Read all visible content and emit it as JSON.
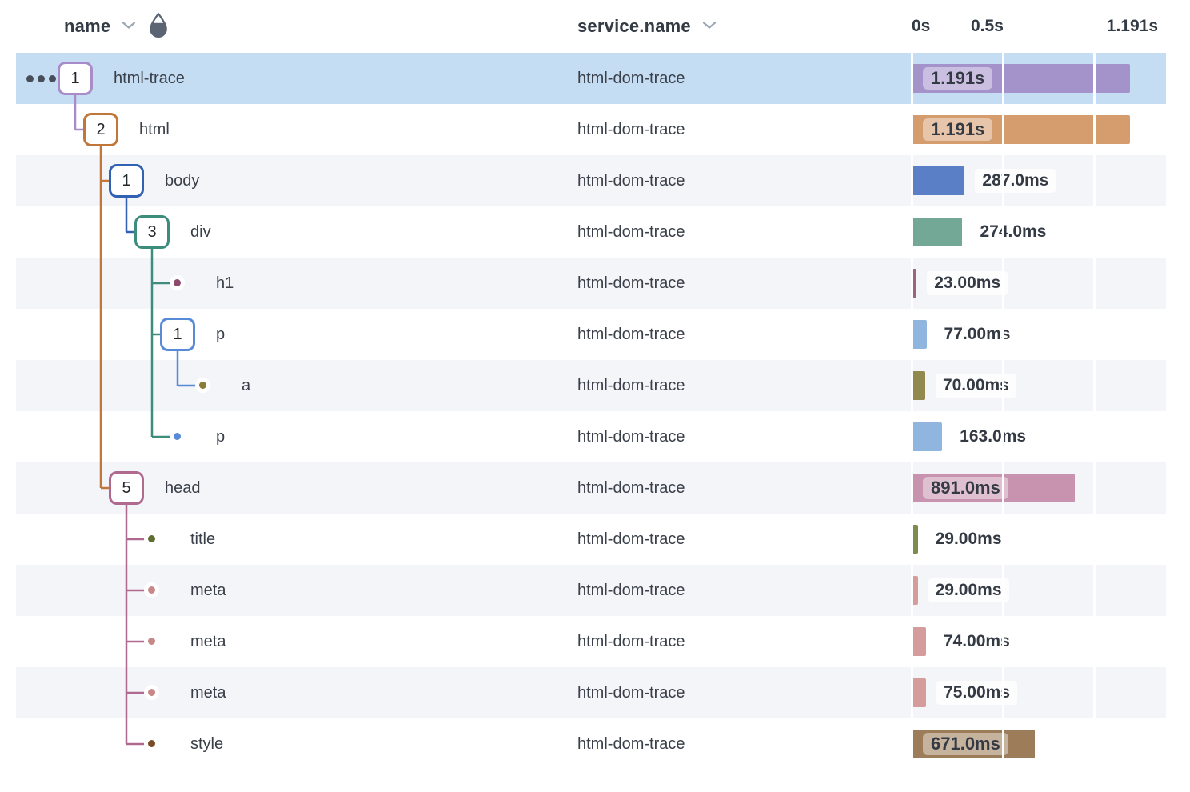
{
  "header": {
    "name_column": {
      "label": "name"
    },
    "service_column": {
      "label": "service.name"
    },
    "axis": {
      "tick_0": "0s",
      "tick_mid": "0.5s",
      "tick_end": "1.191s"
    }
  },
  "timeline": {
    "total_ms": 1191,
    "gridlines_ms": [
      0,
      500,
      1000
    ]
  },
  "colors": {
    "selected_row_bg": "#c5ddf3",
    "alt_row_bg": "#f4f5f9",
    "gridline": "#ffffff",
    "header_text": "#333b45",
    "row_text": "#3a4049",
    "chevron_icon": "#9aa6b4",
    "drop_icon": "#5a6472",
    "ellipsis_icon": "#474e5a"
  },
  "rows": [
    {
      "name": "html-trace",
      "service": "html-dom-trace",
      "level": 0,
      "parent": null,
      "marker": "badge",
      "badge": "1",
      "color": "#a88cc9",
      "bar_color": "#a492cb",
      "duration_ms": 1191,
      "duration_label": "1.191s",
      "label_inside": true,
      "selected": true,
      "ellipsis": true
    },
    {
      "name": "html",
      "service": "html-dom-trace",
      "level": 1,
      "parent": 0,
      "marker": "badge",
      "badge": "2",
      "color": "#c1763a",
      "bar_color": "#d59c6e",
      "duration_ms": 1191,
      "duration_label": "1.191s",
      "label_inside": true
    },
    {
      "name": "body",
      "service": "html-dom-trace",
      "level": 2,
      "parent": 1,
      "marker": "badge",
      "badge": "1",
      "color": "#3061b2",
      "bar_color": "#5b7fc6",
      "duration_ms": 287,
      "duration_label": "287.0ms"
    },
    {
      "name": "div",
      "service": "html-dom-trace",
      "level": 3,
      "parent": 2,
      "marker": "badge",
      "badge": "3",
      "color": "#3d8d7c",
      "bar_color": "#73a896",
      "duration_ms": 274,
      "duration_label": "274.0ms"
    },
    {
      "name": "h1",
      "service": "html-dom-trace",
      "level": 4,
      "parent": 3,
      "marker": "dot",
      "color": "#8e4a6e",
      "bar_color": "#9d6480",
      "duration_ms": 23,
      "duration_label": "23.00ms"
    },
    {
      "name": "p",
      "service": "html-dom-trace",
      "level": 4,
      "parent": 3,
      "marker": "badge",
      "badge": "1",
      "color": "#578ad7",
      "bar_color": "#90b5de",
      "duration_ms": 77,
      "duration_label": "77.00ms"
    },
    {
      "name": "a",
      "service": "html-dom-trace",
      "level": 5,
      "parent": 5,
      "marker": "dot",
      "color": "#8a7b35",
      "bar_color": "#92894f",
      "duration_ms": 70,
      "duration_label": "70.00ms"
    },
    {
      "name": "p",
      "service": "html-dom-trace",
      "level": 4,
      "parent": 3,
      "marker": "dot",
      "color": "#578ad7",
      "bar_color": "#90b5de",
      "duration_ms": 163,
      "duration_label": "163.0ms"
    },
    {
      "name": "head",
      "service": "html-dom-trace",
      "level": 2,
      "parent": 1,
      "marker": "badge",
      "badge": "5",
      "color": "#b06a8f",
      "bar_color": "#c893ae",
      "duration_ms": 891,
      "duration_label": "891.0ms",
      "label_inside": true
    },
    {
      "name": "title",
      "service": "html-dom-trace",
      "level": 3,
      "parent": 8,
      "marker": "dot",
      "color": "#5e6e2f",
      "bar_color": "#7e8d4e",
      "duration_ms": 29,
      "duration_label": "29.00ms"
    },
    {
      "name": "meta",
      "service": "html-dom-trace",
      "level": 3,
      "parent": 8,
      "marker": "dot",
      "color": "#c88887",
      "bar_color": "#d59c9c",
      "duration_ms": 29,
      "duration_label": "29.00ms"
    },
    {
      "name": "meta",
      "service": "html-dom-trace",
      "level": 3,
      "parent": 8,
      "marker": "dot",
      "color": "#c88887",
      "bar_color": "#d59c9c",
      "duration_ms": 74,
      "duration_label": "74.00ms"
    },
    {
      "name": "meta",
      "service": "html-dom-trace",
      "level": 3,
      "parent": 8,
      "marker": "dot",
      "color": "#c88887",
      "bar_color": "#d59c9c",
      "duration_ms": 75,
      "duration_label": "75.00ms"
    },
    {
      "name": "style",
      "service": "html-dom-trace",
      "level": 3,
      "parent": 8,
      "marker": "dot",
      "color": "#7b4b26",
      "bar_color": "#9c7c59",
      "duration_ms": 671,
      "duration_label": "671.0ms",
      "label_inside": true
    }
  ]
}
